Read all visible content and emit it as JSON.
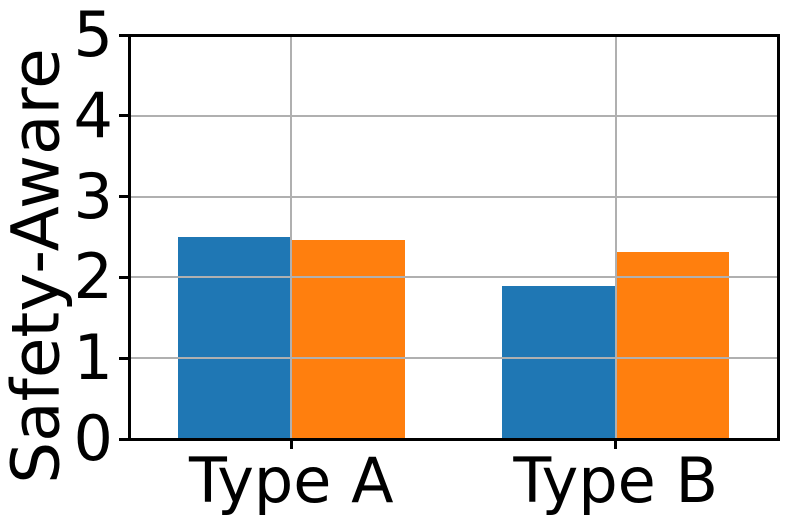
{
  "chart_data": {
    "type": "bar",
    "title": "",
    "xlabel": "",
    "ylabel": "Safety-Aware",
    "categories": [
      "Type A",
      "Type B"
    ],
    "series": [
      {
        "name": "series-blue",
        "color": "#1f77b4",
        "values": [
          2.5,
          1.89
        ]
      },
      {
        "name": "series-orange",
        "color": "#ff7f0e",
        "values": [
          2.46,
          2.31
        ]
      }
    ],
    "ylim": [
      0,
      5
    ],
    "yticks": [
      0,
      1,
      2,
      3,
      4,
      5
    ],
    "grid": true,
    "grid_on_top_of_bars": true,
    "grid_color": "#b0b0b0",
    "axis_color": "#000000",
    "background_color": "#ffffff",
    "legend": "none"
  }
}
